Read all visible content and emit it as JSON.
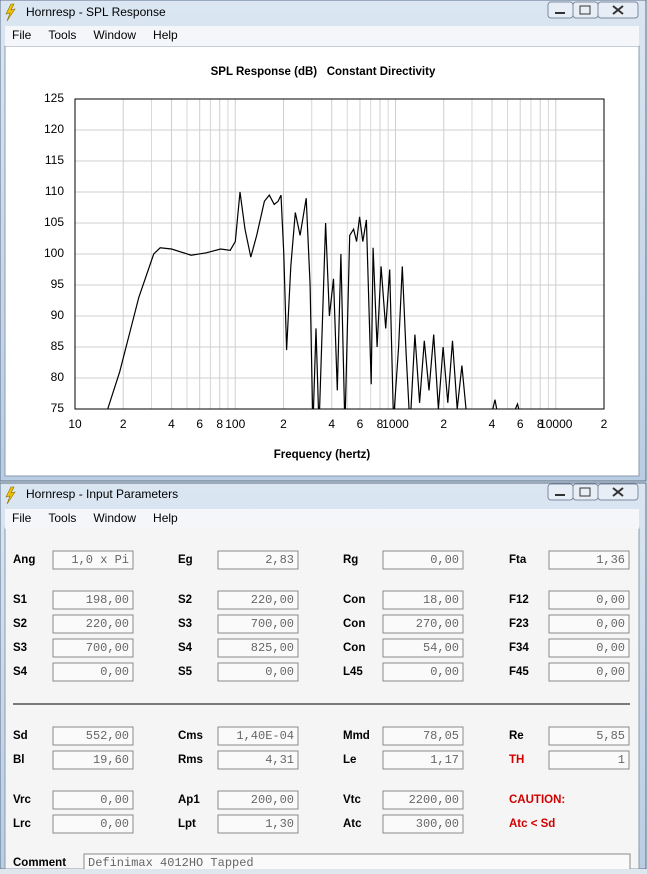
{
  "windows": [
    {
      "title": "Hornresp - SPL Response",
      "menu": [
        "File",
        "Tools",
        "Window",
        "Help"
      ]
    },
    {
      "title": "Hornresp - Input Parameters",
      "menu": [
        "File",
        "Tools",
        "Window",
        "Help"
      ]
    }
  ],
  "chart_data": {
    "type": "line",
    "title": "SPL Response (dB)   Constant Directivity",
    "xlabel": "Frequency (hertz)",
    "xscale": "log",
    "xlim": [
      10,
      20000
    ],
    "ylim": [
      75,
      125
    ],
    "grid": true,
    "color": "#000000",
    "xticks": [
      10,
      {
        "value": 20,
        "label": "2"
      },
      {
        "value": 40,
        "label": "4"
      },
      {
        "value": 60,
        "label": "6"
      },
      {
        "value": 80,
        "label": "8"
      },
      100,
      {
        "value": 200,
        "label": "2"
      },
      {
        "value": 400,
        "label": "4"
      },
      {
        "value": 600,
        "label": "6"
      },
      {
        "value": 800,
        "label": "8"
      },
      1000,
      {
        "value": 2000,
        "label": "2"
      },
      {
        "value": 4000,
        "label": "4"
      },
      {
        "value": 6000,
        "label": "6"
      },
      {
        "value": 8000,
        "label": "8"
      },
      10000,
      {
        "value": 20000,
        "label": "2"
      }
    ],
    "xminorticks": [
      30,
      50,
      70,
      90,
      300,
      500,
      700,
      900,
      3000,
      5000,
      7000,
      9000
    ],
    "yticks": [
      75,
      80,
      85,
      90,
      95,
      100,
      105,
      110,
      115,
      120,
      125
    ],
    "x": [
      16,
      19,
      25,
      31,
      34,
      40,
      53,
      66,
      81,
      93,
      100,
      107,
      115,
      125,
      136,
      152,
      163,
      175,
      185,
      193,
      201,
      209,
      222,
      237,
      254,
      277,
      293,
      305,
      319,
      333,
      351,
      366,
      387,
      410,
      433,
      456,
      483,
      518,
      548,
      572,
      597,
      625,
      658,
      705,
      725,
      768,
      813,
      869,
      920,
      971,
      1045,
      1103,
      1165,
      1232,
      1321,
      1413,
      1512,
      1618,
      1731,
      1852,
      1982,
      2120,
      2269,
      2427,
      2597,
      2779,
      3181,
      3642,
      4178,
      4640,
      5767,
      6590
    ],
    "values": [
      75,
      81,
      93,
      100,
      101,
      100.8,
      99.8,
      100.2,
      100.8,
      100.6,
      102,
      110,
      104,
      99.5,
      103,
      108.5,
      109.5,
      108,
      108.5,
      109.5,
      100,
      84.5,
      98,
      106.7,
      103,
      109,
      95,
      72,
      88,
      72,
      90,
      105,
      90,
      96,
      78,
      100,
      72,
      103,
      104,
      102,
      106,
      102,
      105.5,
      79,
      101,
      85,
      98,
      88,
      97.5,
      73,
      85,
      98,
      84,
      72,
      87,
      76,
      86,
      78,
      87,
      75,
      85,
      76,
      86,
      75,
      82,
      74,
      70,
      70,
      76.5,
      70,
      75.8,
      70
    ]
  },
  "parameters": {
    "rows": [
      [
        {
          "label": "Ang",
          "value": "1,0 x Pi"
        },
        {
          "label": "Eg",
          "value": "2,83"
        },
        {
          "label": "Rg",
          "value": "0,00"
        },
        {
          "label": "Fta",
          "value": "1,36"
        }
      ],
      [
        {
          "label": "S1",
          "value": "198,00"
        },
        {
          "label": "S2",
          "value": "220,00"
        },
        {
          "label": "Con",
          "value": "18,00"
        },
        {
          "label": "F12",
          "value": "0,00"
        }
      ],
      [
        {
          "label": "S2",
          "value": "220,00"
        },
        {
          "label": "S3",
          "value": "700,00"
        },
        {
          "label": "Con",
          "value": "270,00"
        },
        {
          "label": "F23",
          "value": "0,00"
        }
      ],
      [
        {
          "label": "S3",
          "value": "700,00"
        },
        {
          "label": "S4",
          "value": "825,00"
        },
        {
          "label": "Con",
          "value": "54,00"
        },
        {
          "label": "F34",
          "value": "0,00"
        }
      ],
      [
        {
          "label": "S4",
          "value": "0,00"
        },
        {
          "label": "S5",
          "value": "0,00"
        },
        {
          "label": "L45",
          "value": "0,00"
        },
        {
          "label": "F45",
          "value": "0,00"
        }
      ],
      [
        {
          "label": "Sd",
          "value": "552,00"
        },
        {
          "label": "Cms",
          "value": "1,40E-04"
        },
        {
          "label": "Mmd",
          "value": "78,05"
        },
        {
          "label": "Re",
          "value": "5,85"
        }
      ],
      [
        {
          "label": "Bl",
          "value": "19,60"
        },
        {
          "label": "Rms",
          "value": "4,31"
        },
        {
          "label": "Le",
          "value": "1,17"
        },
        {
          "label": "TH",
          "value": "1",
          "warning": true
        }
      ],
      [
        {
          "label": "Vrc",
          "value": "0,00"
        },
        {
          "label": "Ap1",
          "value": "200,00"
        },
        {
          "label": "Vtc",
          "value": "2200,00"
        },
        {
          "label": "CAUTION:",
          "warning": true
        }
      ],
      [
        {
          "label": "Lrc",
          "value": "0,00"
        },
        {
          "label": "Lpt",
          "value": "1,30"
        },
        {
          "label": "Atc",
          "value": "300,00"
        },
        {
          "label": "Atc < Sd",
          "warning": true
        }
      ]
    ],
    "comment_label": "Comment",
    "comment": "Definimax 4012HO Tapped"
  }
}
